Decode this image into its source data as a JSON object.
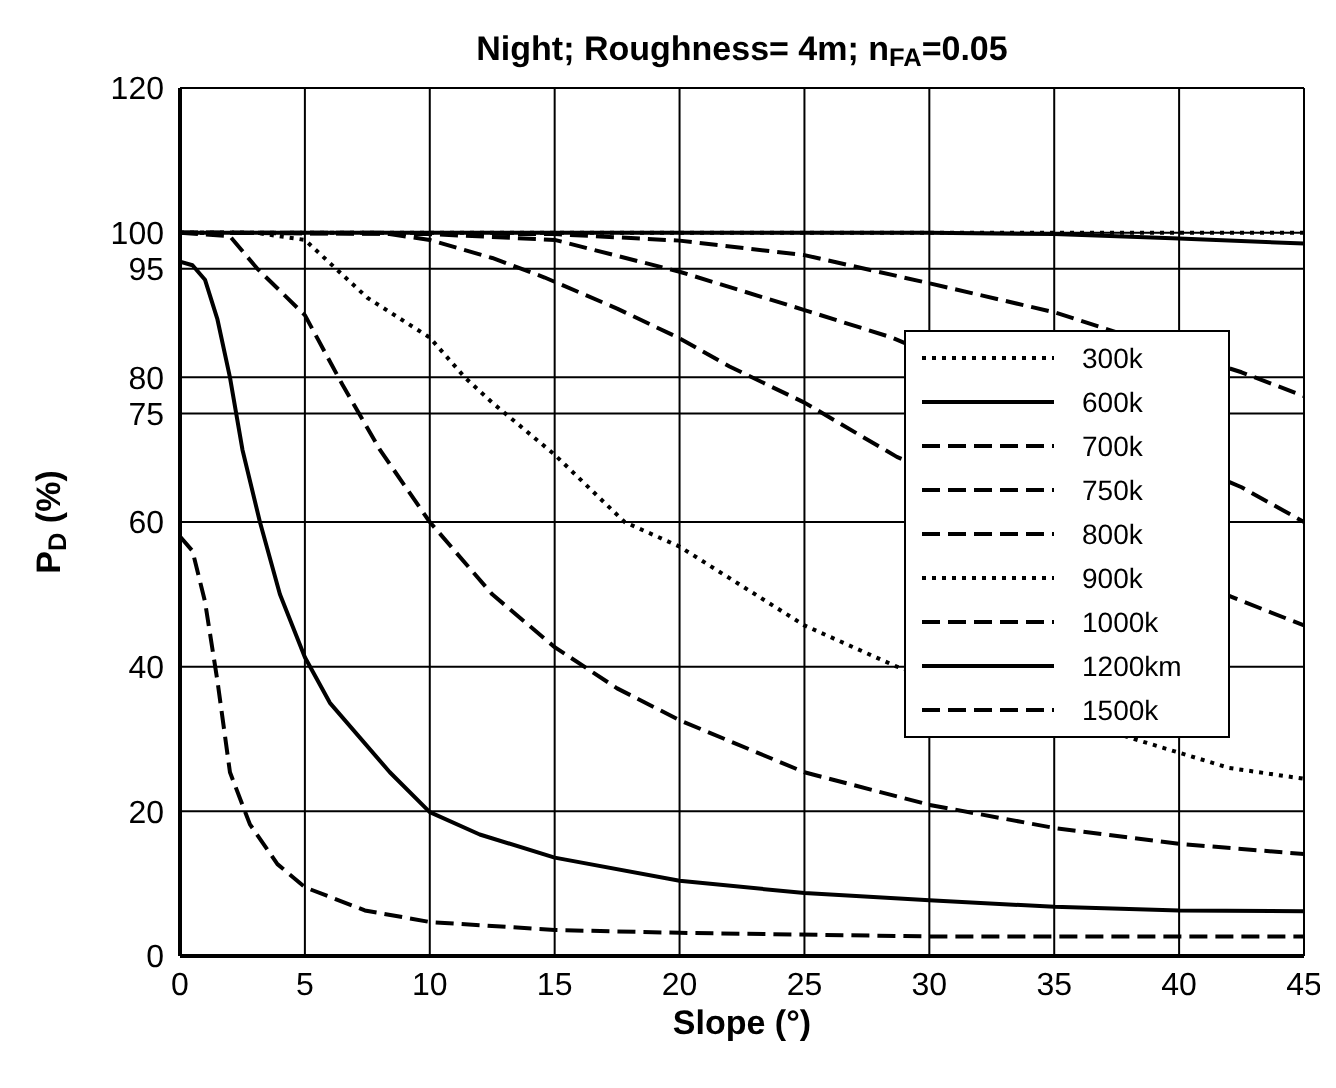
{
  "chart_data": {
    "type": "line",
    "title": "Night; Roughness= 4m; n$_{FA}$=0.05",
    "xlabel": "Slope (°)",
    "ylabel": "P$_{D}$ (%)",
    "xlim": [
      0,
      45
    ],
    "ylim": [
      0,
      120
    ],
    "xticks": [
      0,
      5,
      10,
      15,
      20,
      25,
      30,
      35,
      40,
      45
    ],
    "yticks": [
      0,
      20,
      40,
      60,
      75,
      80,
      95,
      100,
      120
    ],
    "grid": true,
    "legend": "right",
    "marker": "none",
    "series": [
      {
        "name": "300k",
        "color": "#000000",
        "line_style": "dotted",
        "x": [
          0,
          10,
          20,
          30,
          40,
          45
        ],
        "values": [
          100,
          100,
          100,
          100,
          100,
          100
        ]
      },
      {
        "name": "600k",
        "color": "#000000",
        "line_style": "solid",
        "x": [
          0,
          10,
          20,
          30,
          35,
          40,
          45
        ],
        "values": [
          100,
          100,
          100,
          100,
          99.8,
          99.2,
          98.5
        ]
      },
      {
        "name": "700k",
        "color": "#000000",
        "line_style": "dashed",
        "x": [
          0,
          15,
          20,
          25,
          30,
          35,
          42.5,
          45
        ],
        "values": [
          100,
          99.8,
          98.9,
          96.9,
          93,
          89,
          80.7,
          77.4
        ]
      },
      {
        "name": "750k",
        "color": "#000000",
        "line_style": "dashed",
        "x": [
          0,
          10,
          15,
          20,
          25,
          28.5,
          42.5,
          45
        ],
        "values": [
          100,
          99.8,
          99,
          94.6,
          89.3,
          85.5,
          64.8,
          60
        ]
      },
      {
        "name": "800k",
        "color": "#000000",
        "line_style": "dashed",
        "x": [
          0,
          8,
          10,
          12.5,
          14.6,
          17.5,
          20,
          22,
          25,
          28.7,
          42.2,
          45
        ],
        "values": [
          100,
          100,
          99,
          96.5,
          93.8,
          89.5,
          85.4,
          81.5,
          76.5,
          69,
          49.5,
          45.7
        ]
      },
      {
        "name": "900k",
        "color": "#000000",
        "line_style": "dotted",
        "x": [
          0,
          3,
          5,
          7.5,
          10,
          11.4,
          12.5,
          15,
          17.8,
          20,
          25,
          28.7,
          42,
          45
        ],
        "values": [
          100,
          100,
          99,
          91,
          85.5,
          80,
          76.5,
          69.3,
          60,
          56.6,
          45.7,
          40,
          26,
          24.5
        ]
      },
      {
        "name": "1000k",
        "color": "#000000",
        "line_style": "dashed",
        "x": [
          0,
          2,
          3.1,
          5,
          6.5,
          8,
          10,
          12.5,
          15,
          17.5,
          20,
          25,
          30,
          35,
          40,
          45
        ],
        "values": [
          100,
          99.5,
          95,
          88.6,
          79,
          70,
          60,
          50,
          42.7,
          37,
          32.6,
          25.4,
          20.9,
          17.7,
          15.5,
          14.1
        ]
      },
      {
        "name": "1200km",
        "color": "#000000",
        "line_style": "solid",
        "x": [
          0,
          0.5,
          1,
          1.5,
          2,
          2.5,
          3.2,
          4,
          5,
          6,
          8.4,
          10,
          12,
          15,
          20,
          25,
          30,
          35,
          40,
          45
        ],
        "values": [
          96,
          95.5,
          93.5,
          88,
          80,
          70,
          60,
          50,
          41.3,
          35,
          25.4,
          19.9,
          16.8,
          13.6,
          10.4,
          8.7,
          7.7,
          6.8,
          6.3,
          6.2
        ]
      },
      {
        "name": "1500k",
        "color": "#000000",
        "line_style": "dashed",
        "x": [
          0,
          0.5,
          1,
          1.5,
          2,
          2.8,
          3.9,
          5,
          7.4,
          10,
          15,
          20,
          30,
          45
        ],
        "values": [
          58,
          56,
          49,
          38,
          25.4,
          18.2,
          12.7,
          9.5,
          6.3,
          4.7,
          3.6,
          3.2,
          2.7,
          2.7
        ]
      }
    ]
  }
}
